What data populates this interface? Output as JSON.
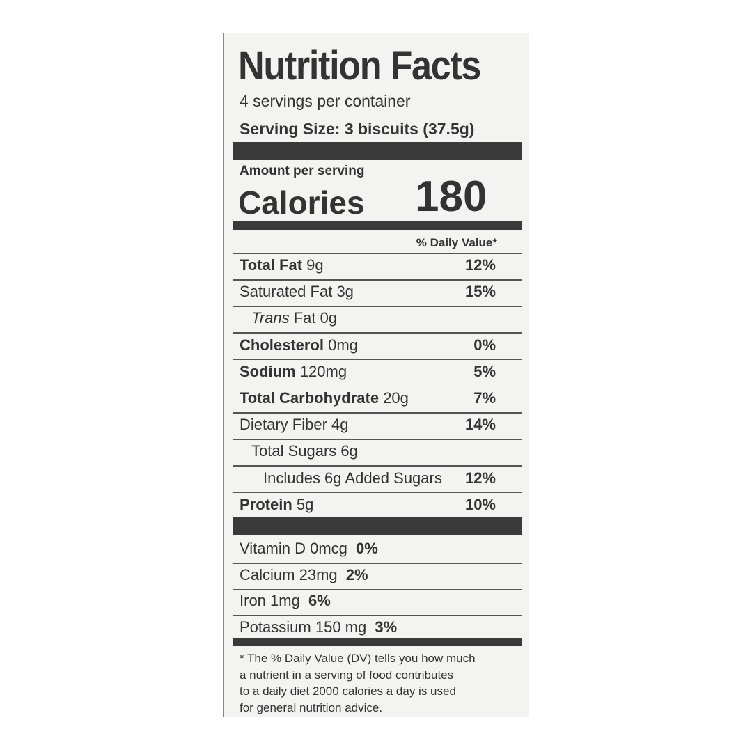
{
  "header": {
    "title": "Nutrition Facts",
    "servings": "4 servings per container",
    "serving_size": "Serving Size: 3 biscuits (37.5g)"
  },
  "calories": {
    "caption": "Amount per serving",
    "label": "Calories",
    "value": "180"
  },
  "daily_value_header": "% Daily Value*",
  "nutrients": [
    {
      "name": "Total Fat",
      "amount": "9g",
      "dv": "12%",
      "bold": true,
      "indent": 0
    },
    {
      "name": "Saturated Fat",
      "amount": "3g",
      "dv": "15%",
      "bold": false,
      "indent": 0
    },
    {
      "name_italic": "Trans",
      "name": "Fat",
      "amount": "0g",
      "bold": false,
      "indent": 1
    },
    {
      "name": "Cholesterol",
      "amount": "0mg",
      "dv": "0%",
      "bold": true,
      "indent": 0
    },
    {
      "name": "Sodium",
      "amount": "120mg",
      "dv": "5%",
      "bold": true,
      "indent": 0
    },
    {
      "name": "Total Carbohydrate",
      "amount": "20g",
      "dv": "7%",
      "bold": true,
      "indent": 0
    },
    {
      "name": "Dietary Fiber",
      "amount": "4g",
      "dv": "14%",
      "bold": false,
      "indent": 0
    },
    {
      "name": "Total Sugars",
      "amount": "6g",
      "bold": false,
      "indent": 1
    },
    {
      "name": "Includes 6g Added Sugars",
      "dv": "12%",
      "bold": false,
      "indent": 2
    },
    {
      "name": "Protein",
      "amount": "5g",
      "dv": "10%",
      "bold": true,
      "indent": 0
    }
  ],
  "vitamins": [
    {
      "name": "Vitamin D",
      "amount": "0mcg",
      "dv": "0%"
    },
    {
      "name": "Calcium",
      "amount": "23mg",
      "dv": "2%"
    },
    {
      "name": "Iron",
      "amount": "1mg",
      "dv": "6%"
    },
    {
      "name": "Potassium",
      "amount": "150 mg",
      "dv": "3%"
    }
  ],
  "footnote": [
    "* The % Daily Value (DV) tells you how much",
    "a nutrient in a serving of food contributes",
    "to a daily diet 2000 calories a day is used",
    "for general nutrition advice."
  ]
}
